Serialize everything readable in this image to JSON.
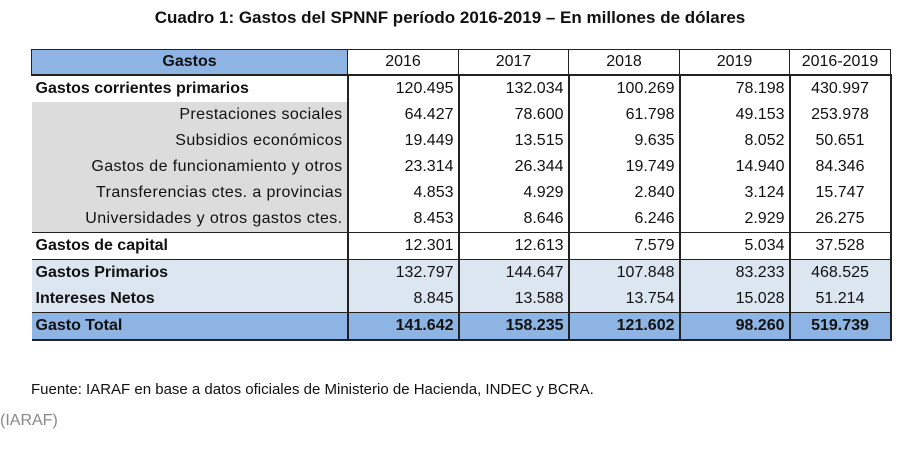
{
  "title": "Cuadro 1: Gastos del SPNNF período 2016-2019 – En millones de dólares",
  "table": {
    "headers": [
      "Gastos",
      "2016",
      "2017",
      "2018",
      "2019",
      "2016-2019"
    ],
    "rows": [
      {
        "label": "Gastos corrientes primarios",
        "values": [
          "120.495",
          "132.034",
          "100.269",
          "78.198",
          "430.997"
        ]
      },
      {
        "label": "Prestaciones sociales",
        "values": [
          "64.427",
          "78.600",
          "61.798",
          "49.153",
          "253.978"
        ]
      },
      {
        "label": "Subsidios económicos",
        "values": [
          "19.449",
          "13.515",
          "9.635",
          "8.052",
          "50.651"
        ]
      },
      {
        "label": "Gastos de funcionamiento y otros",
        "values": [
          "23.314",
          "26.344",
          "19.749",
          "14.940",
          "84.346"
        ]
      },
      {
        "label": "Transferencias ctes. a provincias",
        "values": [
          "4.853",
          "4.929",
          "2.840",
          "3.124",
          "15.747"
        ]
      },
      {
        "label": "Universidades y otros gastos ctes.",
        "values": [
          "8.453",
          "8.646",
          "6.246",
          "2.929",
          "26.275"
        ]
      },
      {
        "label": "Gastos de capital",
        "values": [
          "12.301",
          "12.613",
          "7.579",
          "5.034",
          "37.528"
        ]
      },
      {
        "label": "Gastos Primarios",
        "values": [
          "132.797",
          "144.647",
          "107.848",
          "83.233",
          "468.525"
        ]
      },
      {
        "label": "Intereses Netos",
        "values": [
          "8.845",
          "13.588",
          "13.754",
          "15.028",
          "51.214"
        ]
      },
      {
        "label": "Gasto Total",
        "values": [
          "141.642",
          "158.235",
          "121.602",
          "98.260",
          "519.739"
        ]
      }
    ]
  },
  "source": "Fuente: IARAF en base a datos oficiales de Ministerio de Hacienda, INDEC y BCRA.",
  "credit": "(IARAF)",
  "colors": {
    "header_blue": "#8db4e2",
    "light_blue": "#dce6f1",
    "gray": "#dcdcdc"
  }
}
